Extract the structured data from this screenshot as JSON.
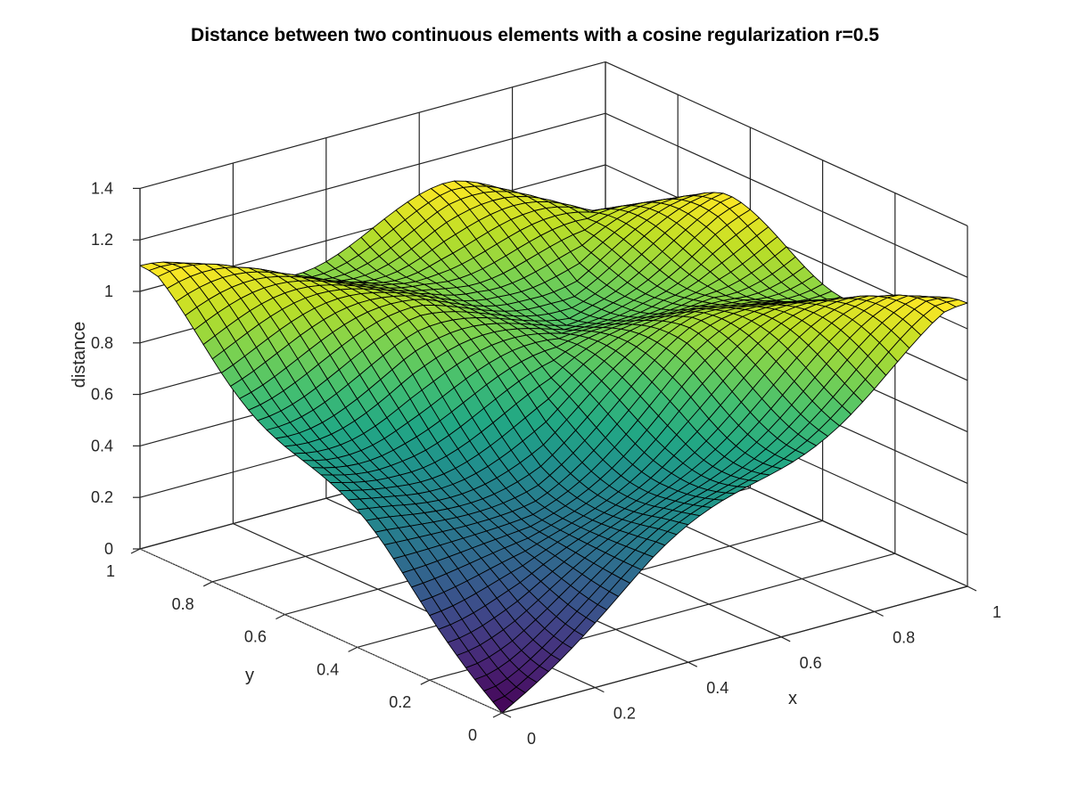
{
  "chart_data": {
    "type": "surface",
    "title": "Distance between two continuous elements with a cosine regularization r=0.5",
    "xlabel": "x",
    "ylabel": "y",
    "zlabel": "distance",
    "xlim": [
      0,
      1
    ],
    "ylim": [
      0,
      1
    ],
    "zlim": [
      0,
      1.4
    ],
    "x_ticks": [
      "0",
      "0.2",
      "0.4",
      "0.6",
      "0.8",
      "1"
    ],
    "y_ticks": [
      "0",
      "0.2",
      "0.4",
      "0.6",
      "0.8",
      "1"
    ],
    "z_ticks": [
      "0",
      "0.2",
      "0.4",
      "0.6",
      "0.8",
      "1",
      "1.2",
      "1.4"
    ],
    "grid": true,
    "colormap": "viridis",
    "mesh_color": "#000000",
    "grid_resolution": 41,
    "sample_points": [
      {
        "x": 0,
        "y": 0,
        "z": 0
      },
      {
        "x": 0.5,
        "y": 0.5,
        "z": 1.0
      },
      {
        "x": 1,
        "y": 1,
        "z": 1.0
      },
      {
        "x": 0,
        "y": 1,
        "z": 1.0
      },
      {
        "x": 1,
        "y": 0,
        "z": 1.0
      },
      {
        "x": 0.33,
        "y": 1,
        "z": 1.12
      },
      {
        "x": 1,
        "y": 0.33,
        "z": 1.12
      }
    ]
  }
}
